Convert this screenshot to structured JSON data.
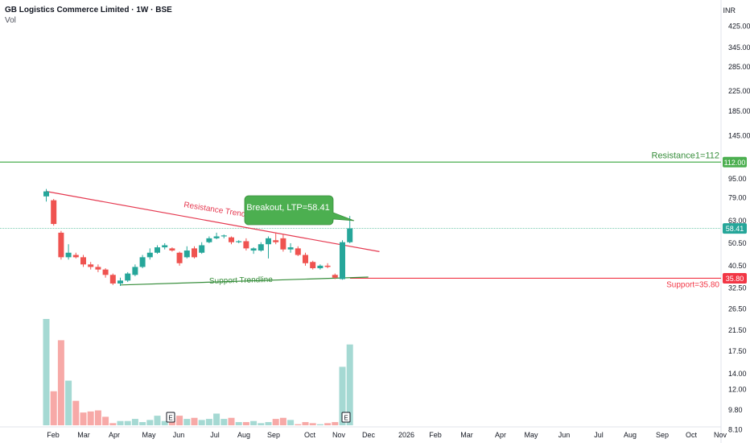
{
  "header": {
    "title": "GB Logistics Commerce Limited · 1W · BSE",
    "volume_label": "Vol",
    "currency": "INR"
  },
  "annotations": {
    "resistance_trend_label": "Resistance Trendline",
    "support_trend_label": "Support Trendline",
    "breakout_label": "Breakout, LTP=58.41",
    "resistance1_label": "Resistance1=112",
    "support_label": "Support=35.80",
    "earnings_marker": "E"
  },
  "colors": {
    "up": "#26a69a",
    "down": "#ef5350",
    "up_vol": "#a5d9d3",
    "down_vol": "#f7a9a7",
    "resistance_line": "#4caf50",
    "support_line": "#f23645",
    "trend_support": "#388e3c",
    "trend_resistance": "#e53950",
    "callout": "#4caf50"
  },
  "chart_data": {
    "type": "candlestick",
    "title": "GB Logistics Commerce Limited · 1W · BSE",
    "y_scale": "log",
    "ylim": [
      7.5,
      470
    ],
    "y_ticks": [
      "425.00",
      "345.00",
      "285.00",
      "225.00",
      "185.00",
      "145.00",
      "95.00",
      "79.00",
      "63.00",
      "50.50",
      "40.50",
      "32.50",
      "26.50",
      "21.50",
      "17.50",
      "14.00",
      "12.00",
      "9.80",
      "8.10"
    ],
    "x_ticks": [
      "Feb",
      "Mar",
      "Apr",
      "May",
      "Jun",
      "Jul",
      "Aug",
      "Sep",
      "Oct",
      "Nov",
      "Dec",
      "2026",
      "Feb",
      "Mar",
      "Apr",
      "May",
      "Jun",
      "Jul",
      "Aug",
      "Sep",
      "Oct",
      "Nov"
    ],
    "price_badges": [
      {
        "label": "112.00",
        "value": 112
      },
      {
        "label": "58.41",
        "value": 58.41
      },
      {
        "label": "35.80",
        "value": 35.8
      }
    ],
    "horizontal_levels": [
      {
        "name": "Resistance1",
        "value": 112
      },
      {
        "name": "Support",
        "value": 35.8
      }
    ],
    "trendlines": [
      {
        "name": "Resistance Trendline",
        "from": {
          "week": 0,
          "price": 84
        },
        "to": {
          "week": 45,
          "price": 46.5
        }
      },
      {
        "name": "Support Trendline",
        "from": {
          "week": 10,
          "price": 33.5
        },
        "to": {
          "week": 43.5,
          "price": 36.2
        }
      }
    ],
    "candles": [
      {
        "o": 80,
        "h": 86,
        "l": 76,
        "c": 84
      },
      {
        "o": 77,
        "h": 78,
        "l": 60,
        "c": 61
      },
      {
        "o": 56,
        "h": 57,
        "l": 43,
        "c": 44
      },
      {
        "o": 44,
        "h": 50,
        "l": 43,
        "c": 46
      },
      {
        "o": 45,
        "h": 46,
        "l": 43.5,
        "c": 44
      },
      {
        "o": 44,
        "h": 45,
        "l": 40,
        "c": 41
      },
      {
        "o": 41,
        "h": 42,
        "l": 39,
        "c": 40
      },
      {
        "o": 40,
        "h": 41,
        "l": 38,
        "c": 39
      },
      {
        "o": 39,
        "h": 39.5,
        "l": 36,
        "c": 37
      },
      {
        "o": 37,
        "h": 37.5,
        "l": 33.5,
        "c": 34
      },
      {
        "o": 34,
        "h": 36,
        "l": 33.2,
        "c": 35
      },
      {
        "o": 35,
        "h": 38,
        "l": 34.5,
        "c": 37.5
      },
      {
        "o": 37,
        "h": 41,
        "l": 36.5,
        "c": 40
      },
      {
        "o": 40,
        "h": 45,
        "l": 39.5,
        "c": 44
      },
      {
        "o": 44,
        "h": 48,
        "l": 43,
        "c": 46
      },
      {
        "o": 46,
        "h": 49.5,
        "l": 45.5,
        "c": 48.5
      },
      {
        "o": 48.5,
        "h": 50.5,
        "l": 47.5,
        "c": 49.5
      },
      {
        "o": 48,
        "h": 48.5,
        "l": 46.5,
        "c": 47
      },
      {
        "o": 46,
        "h": 46.5,
        "l": 40.5,
        "c": 41.5
      },
      {
        "o": 44,
        "h": 49,
        "l": 43.5,
        "c": 47
      },
      {
        "o": 48,
        "h": 49,
        "l": 43.5,
        "c": 44
      },
      {
        "o": 46,
        "h": 51,
        "l": 45.5,
        "c": 49.5
      },
      {
        "o": 51,
        "h": 54,
        "l": 50.5,
        "c": 53
      },
      {
        "o": 53,
        "h": 56,
        "l": 52.5,
        "c": 54
      },
      {
        "o": 54,
        "h": 55,
        "l": 53,
        "c": 54.5
      },
      {
        "o": 53.5,
        "h": 54,
        "l": 50,
        "c": 51
      },
      {
        "o": 51,
        "h": 52,
        "l": 50.5,
        "c": 51.5
      },
      {
        "o": 51.5,
        "h": 53,
        "l": 47,
        "c": 48
      },
      {
        "o": 47,
        "h": 48.5,
        "l": 45.5,
        "c": 48
      },
      {
        "o": 47,
        "h": 51,
        "l": 46.5,
        "c": 50
      },
      {
        "o": 50,
        "h": 54,
        "l": 43.5,
        "c": 53
      },
      {
        "o": 52,
        "h": 56,
        "l": 50,
        "c": 51
      },
      {
        "o": 53,
        "h": 55,
        "l": 46.5,
        "c": 47.5
      },
      {
        "o": 47.5,
        "h": 50.5,
        "l": 46,
        "c": 48.5
      },
      {
        "o": 48,
        "h": 49,
        "l": 44.5,
        "c": 45
      },
      {
        "o": 45,
        "h": 46,
        "l": 40.5,
        "c": 41.5
      },
      {
        "o": 42,
        "h": 42.5,
        "l": 39,
        "c": 39.5
      },
      {
        "o": 39.5,
        "h": 41,
        "l": 39,
        "c": 40.5
      },
      {
        "o": 40.5,
        "h": 41.5,
        "l": 39.5,
        "c": 40
      },
      {
        "o": 37,
        "h": 37.5,
        "l": 35.5,
        "c": 36
      },
      {
        "o": 35.5,
        "h": 52,
        "l": 35.3,
        "c": 51
      },
      {
        "o": 51,
        "h": 66,
        "l": 50.5,
        "c": 58.41
      }
    ],
    "volume": {
      "ylim": [
        0,
        100
      ],
      "values": [
        100,
        32,
        80,
        42,
        23,
        12,
        13,
        14,
        8,
        2,
        4,
        4,
        6,
        3,
        5,
        9,
        4,
        7,
        9,
        6,
        7,
        5,
        6,
        11,
        6,
        7,
        3,
        3,
        4,
        2,
        3,
        6,
        7,
        5,
        1,
        3,
        2,
        1,
        2,
        3,
        55,
        76
      ]
    }
  }
}
